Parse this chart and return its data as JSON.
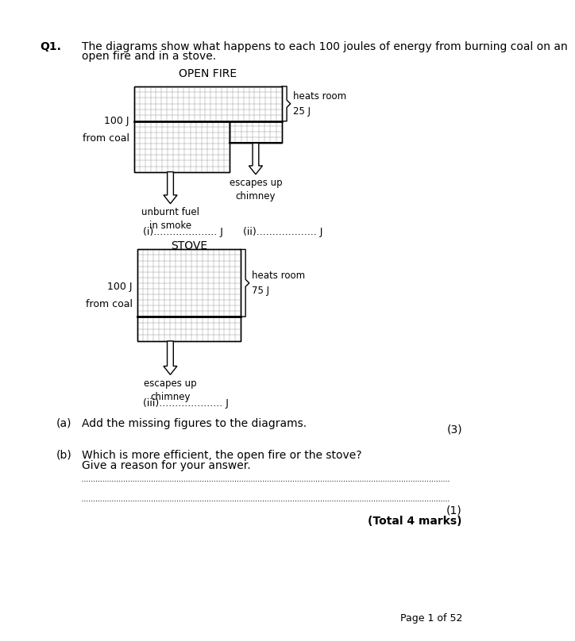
{
  "page_width": 7.91,
  "page_height": 10.24,
  "bg_color": "#ffffff",
  "q1_bold": "Q1.",
  "q1_text_line1": "The diagrams show what happens to each 100 joules of energy from burning coal on an",
  "q1_text_line2": "open fire and in a stove.",
  "open_fire_title": "OPEN FIRE",
  "stove_title": "STOVE",
  "open_fire_label": "100 J\nfrom coal",
  "stove_label": "100 J\nfrom coal",
  "open_fire_heats_room_line1": "heats room",
  "open_fire_heats_room_line2": "25 J",
  "stove_heats_room_line1": "heats room",
  "stove_heats_room_line2": "75 J",
  "open_fire_unburnt": "unburnt fuel\nin smoke",
  "open_fire_chimney": "escapes up\nchimney",
  "stove_chimney": "escapes up\nchimney",
  "open_fire_blank_i": "(i).................... J",
  "open_fire_blank_ii": "(ii)................... J",
  "stove_blank_iii": "(iii).................... J",
  "part_a_label": "(a)",
  "part_a_text": "Add the missing figures to the diagrams.",
  "part_a_marks": "(3)",
  "part_b_label": "(b)",
  "part_b_text_line1": "Which is more efficient, the open fire or the stove?",
  "part_b_text_line2": "Give a reason for your answer.",
  "part_b_marks": "(1)",
  "total_marks": "(Total 4 marks)",
  "page_label": "Page 1 of 52",
  "grid_color": "#999999",
  "border_color": "#000000",
  "font_size_main": 10,
  "font_size_label": 9,
  "font_size_small": 8.5
}
